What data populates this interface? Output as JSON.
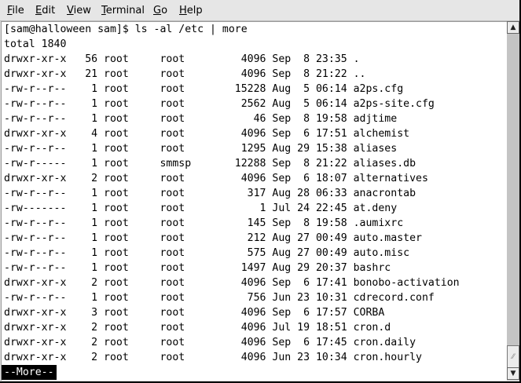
{
  "menu": [
    {
      "label": "File",
      "mnemonic": "F",
      "rest": "ile"
    },
    {
      "label": "Edit",
      "mnemonic": "E",
      "rest": "dit"
    },
    {
      "label": "View",
      "mnemonic": "V",
      "rest": "iew"
    },
    {
      "label": "Terminal",
      "mnemonic": "T",
      "rest": "erminal"
    },
    {
      "label": "Go",
      "mnemonic": "G",
      "rest": "o"
    },
    {
      "label": "Help",
      "mnemonic": "H",
      "rest": "elp"
    }
  ],
  "terminal": {
    "lines": [
      "[sam@halloween sam]$ ls -al /etc | more",
      "total 1840",
      "drwxr-xr-x   56 root     root         4096 Sep  8 23:35 .",
      "drwxr-xr-x   21 root     root         4096 Sep  8 21:22 ..",
      "-rw-r--r--    1 root     root        15228 Aug  5 06:14 a2ps.cfg",
      "-rw-r--r--    1 root     root         2562 Aug  5 06:14 a2ps-site.cfg",
      "-rw-r--r--    1 root     root           46 Sep  8 19:58 adjtime",
      "drwxr-xr-x    4 root     root         4096 Sep  6 17:51 alchemist",
      "-rw-r--r--    1 root     root         1295 Aug 29 15:38 aliases",
      "-rw-r-----    1 root     smmsp       12288 Sep  8 21:22 aliases.db",
      "drwxr-xr-x    2 root     root         4096 Sep  6 18:07 alternatives",
      "-rw-r--r--    1 root     root          317 Aug 28 06:33 anacrontab",
      "-rw-------    1 root     root            1 Jul 24 22:45 at.deny",
      "-rw-r--r--    1 root     root          145 Sep  8 19:58 .aumixrc",
      "-rw-r--r--    1 root     root          212 Aug 27 00:49 auto.master",
      "-rw-r--r--    1 root     root          575 Aug 27 00:49 auto.misc",
      "-rw-r--r--    1 root     root         1497 Aug 29 20:37 bashrc",
      "drwxr-xr-x    2 root     root         4096 Sep  6 17:41 bonobo-activation",
      "-rw-r--r--    1 root     root          756 Jun 23 10:31 cdrecord.conf",
      "drwxr-xr-x    3 root     root         4096 Sep  6 17:57 CORBA",
      "drwxr-xr-x    2 root     root         4096 Jul 19 18:51 cron.d",
      "drwxr-xr-x    2 root     root         4096 Sep  6 17:45 cron.daily",
      "drwxr-xr-x    2 root     root         4096 Jun 23 10:34 cron.hourly"
    ],
    "pager_prompt": "--More--"
  },
  "scrollbar": {
    "position_percent": 100
  }
}
